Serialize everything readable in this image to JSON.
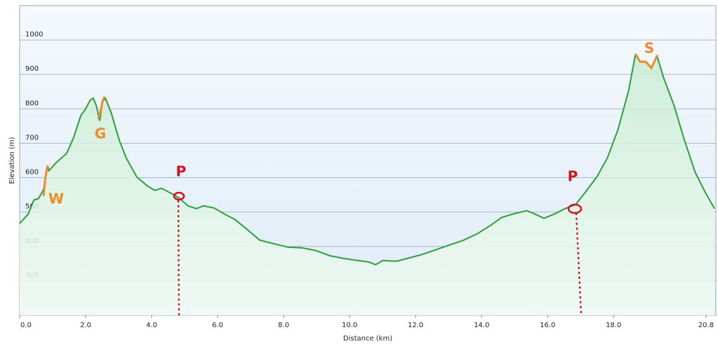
{
  "chart_data": {
    "type": "line",
    "xlabel": "Distance  (km)",
    "ylabel": "Elevation (m)",
    "x": [
      0,
      0.26,
      0.43,
      0.57,
      0.72,
      0.85,
      0.89,
      1.1,
      1.43,
      1.64,
      1.85,
      2.0,
      2.13,
      2.23,
      2.32,
      2.43,
      2.51,
      2.6,
      2.77,
      3.02,
      3.23,
      3.55,
      3.87,
      4.09,
      4.3,
      4.62,
      4.83,
      5.1,
      5.36,
      5.57,
      5.89,
      6.21,
      6.53,
      6.85,
      7.28,
      7.7,
      8.13,
      8.55,
      8.98,
      9.4,
      9.83,
      10.26,
      10.57,
      10.79,
      11.0,
      11.43,
      11.74,
      12.17,
      12.6,
      13.02,
      13.45,
      13.87,
      14.3,
      14.6,
      14.94,
      15.36,
      15.57,
      15.89,
      16.2,
      16.53,
      16.85,
      17.17,
      17.49,
      17.81,
      18.13,
      18.45,
      18.66,
      18.81,
      18.98,
      19.15,
      19.32,
      19.51,
      19.83,
      20.15,
      20.47,
      20.79,
      21.06
    ],
    "series": [
      {
        "color": "#2e9e3c",
        "values": [
          467,
          494,
          535,
          539,
          565,
          633,
          620,
          643,
          671,
          718,
          780,
          800,
          824,
          831,
          810,
          765,
          820,
          831,
          790,
          708,
          657,
          602,
          576,
          563,
          569,
          553,
          541,
          518,
          510,
          518,
          512,
          494,
          478,
          453,
          418,
          408,
          398,
          396,
          388,
          373,
          365,
          359,
          355,
          347,
          359,
          357,
          365,
          376,
          390,
          404,
          418,
          437,
          463,
          484,
          494,
          504,
          496,
          482,
          494,
          510,
          522,
          561,
          602,
          657,
          739,
          851,
          957,
          937,
          937,
          918,
          953,
          892,
          810,
          708,
          616,
          555,
          510
        ]
      }
    ],
    "xlim": [
      0,
      21.1
    ],
    "ylim": [
      200,
      1100
    ],
    "xticks": [
      {
        "value": 0,
        "label": "0.0"
      },
      {
        "value": 2,
        "label": "2.0"
      },
      {
        "value": 4,
        "label": "4.0"
      },
      {
        "value": 6,
        "label": "6.0"
      },
      {
        "value": 8,
        "label": "8.0"
      },
      {
        "value": 10,
        "label": "10.0"
      },
      {
        "value": 12,
        "label": "12.0"
      },
      {
        "value": 14,
        "label": "14.0"
      },
      {
        "value": 16,
        "label": "16.0"
      },
      {
        "value": 18,
        "label": "18.0"
      },
      {
        "value": 20.8,
        "label": "20.8"
      }
    ],
    "yticks": [
      300,
      400,
      500,
      600,
      700,
      800,
      900,
      1000
    ],
    "grid": true,
    "annotations": [
      "W",
      "G",
      "P",
      "P",
      "S"
    ]
  }
}
